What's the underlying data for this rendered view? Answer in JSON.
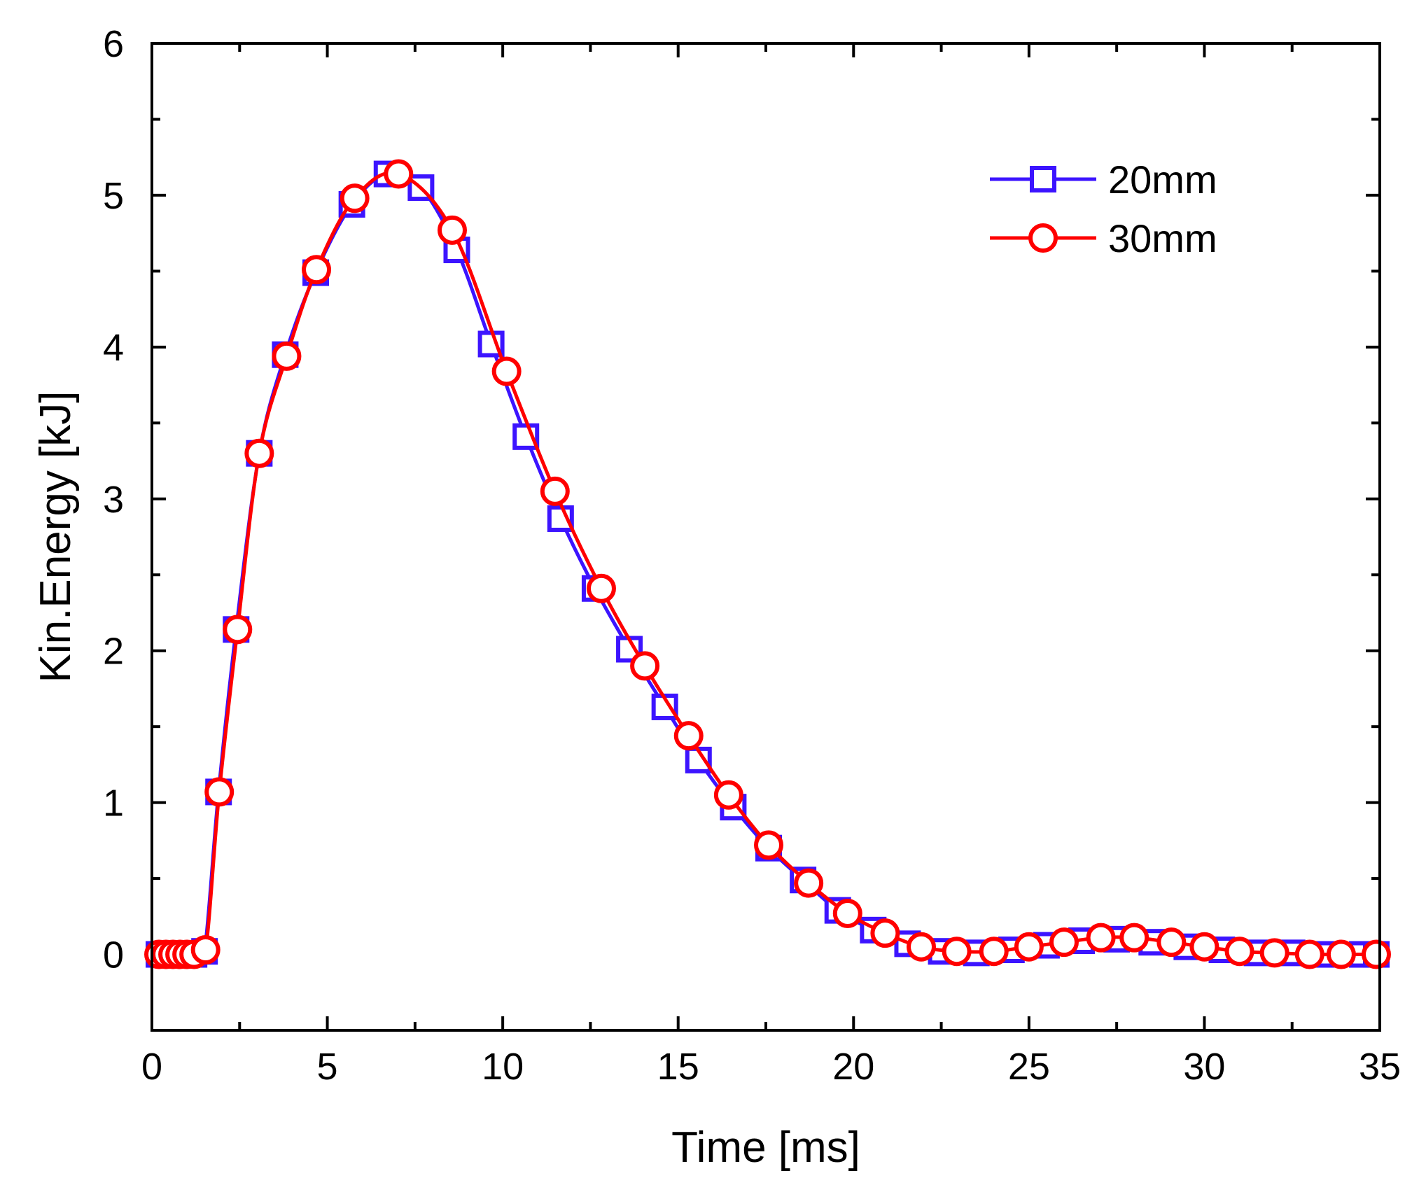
{
  "chart_data": {
    "type": "line",
    "title": "",
    "xlabel": "Time [ms]",
    "ylabel": "Kin.Energy [kJ]",
    "xlim": [
      0,
      35
    ],
    "ylim": [
      -0.5,
      6
    ],
    "xticks": [
      0,
      5,
      10,
      15,
      20,
      25,
      30,
      35
    ],
    "yticks": [
      0,
      1,
      2,
      3,
      4,
      5,
      6
    ],
    "grid": false,
    "legend_position": "top-right",
    "series": [
      {
        "name": "20mm",
        "color": "#3c14ff",
        "marker": "square",
        "x": [
          0.2,
          0.4,
          0.6,
          0.8,
          1.0,
          1.2,
          1.5,
          1.9,
          2.4,
          3.06,
          3.8,
          4.67,
          5.7,
          6.7,
          7.67,
          8.69,
          9.67,
          10.66,
          11.65,
          12.63,
          13.61,
          14.62,
          15.58,
          16.57,
          17.58,
          18.56,
          19.55,
          20.56,
          21.54,
          22.5,
          23.5,
          24.5,
          25.5,
          26.5,
          27.5,
          28.5,
          29.5,
          30.5,
          31.5,
          32.5,
          33.5,
          34.5,
          34.9
        ],
        "y": [
          0,
          0,
          0,
          0,
          0,
          0,
          0.02,
          1.07,
          2.14,
          3.3,
          3.95,
          4.49,
          4.94,
          5.14,
          5.05,
          4.64,
          4.02,
          3.41,
          2.87,
          2.41,
          2.01,
          1.63,
          1.28,
          0.97,
          0.7,
          0.49,
          0.29,
          0.16,
          0.07,
          0.02,
          0.01,
          0.03,
          0.06,
          0.09,
          0.1,
          0.08,
          0.05,
          0.03,
          0.01,
          0.01,
          0,
          0,
          0
        ]
      },
      {
        "name": "30mm",
        "color": "#ff0000",
        "marker": "circle",
        "x": [
          0.2,
          0.4,
          0.6,
          0.8,
          1.0,
          1.2,
          1.53,
          1.92,
          2.44,
          3.06,
          3.84,
          4.69,
          5.78,
          7.03,
          8.56,
          10.11,
          11.49,
          12.81,
          14.05,
          15.3,
          16.44,
          17.58,
          18.72,
          19.83,
          20.9,
          21.93,
          22.94,
          24.0,
          25.0,
          26.0,
          27.05,
          28.0,
          29.06,
          30.0,
          31.0,
          32.0,
          33.0,
          33.9,
          34.9
        ],
        "y": [
          0,
          0,
          0,
          0,
          0,
          0,
          0.03,
          1.07,
          2.14,
          3.3,
          3.94,
          4.51,
          4.98,
          5.14,
          4.77,
          3.84,
          3.05,
          2.41,
          1.9,
          1.44,
          1.05,
          0.72,
          0.47,
          0.27,
          0.14,
          0.05,
          0.02,
          0.02,
          0.05,
          0.08,
          0.11,
          0.11,
          0.08,
          0.05,
          0.02,
          0.01,
          0,
          0,
          0
        ]
      }
    ]
  }
}
